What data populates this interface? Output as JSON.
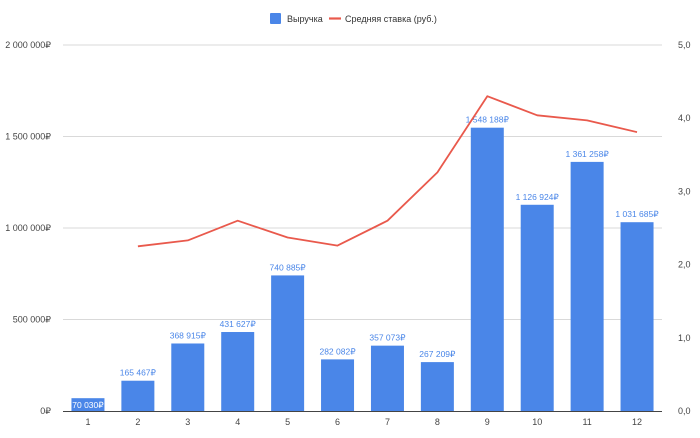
{
  "chart_data": {
    "type": "bar",
    "categories": [
      "1",
      "2",
      "3",
      "4",
      "5",
      "6",
      "7",
      "8",
      "9",
      "10",
      "11",
      "12"
    ],
    "series": [
      {
        "name": "Выручка",
        "kind": "bar",
        "axis": "left",
        "color": "#4a86e8",
        "values": [
          70030,
          165467,
          368915,
          431627,
          740885,
          282082,
          357073,
          267209,
          1548188,
          1126924,
          1361258,
          1031685
        ],
        "labels": [
          "70 030₽",
          "165 467₽",
          "368 915₽",
          "431 627₽",
          "740 885₽",
          "282 082₽",
          "357 073₽",
          "267 209₽",
          "1 548 188₽",
          "1 126 924₽",
          "1 361 258₽",
          "1 031 685₽"
        ]
      },
      {
        "name": "Средняя ставка (руб.)",
        "kind": "line",
        "axis": "right",
        "color": "#e9594c",
        "values": [
          null,
          2.25,
          2.33,
          2.6,
          2.37,
          2.26,
          2.6,
          3.26,
          4.3,
          4.04,
          3.97,
          3.81
        ]
      }
    ],
    "y_left": {
      "ylim": [
        0,
        2000000
      ],
      "ticks": [
        0,
        500000,
        1000000,
        1500000,
        2000000
      ],
      "tick_labels": [
        "0₽",
        "500 000₽",
        "1 000 000₽",
        "1 500 000₽",
        "2 000 000₽"
      ]
    },
    "y_right": {
      "ylim": [
        0,
        5
      ],
      "ticks": [
        0,
        1,
        2,
        3,
        4,
        5
      ],
      "tick_labels": [
        "0,0",
        "1,0",
        "2,0",
        "3,0",
        "4,0",
        "5,0"
      ]
    },
    "title": "",
    "xlabel": "",
    "ylabel": "",
    "legend_position": "top",
    "grid": true,
    "colors": {
      "grid": "#d9d9d9",
      "axis": "#444444",
      "label": "#4a86e8"
    }
  }
}
